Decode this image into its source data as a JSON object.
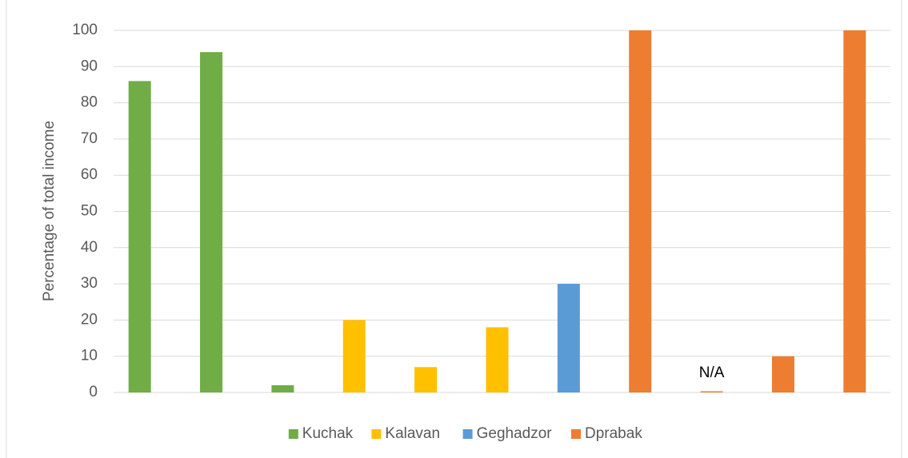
{
  "chart_data": {
    "type": "bar",
    "y_label": "Percentage of total income",
    "categories": [
      null,
      null,
      null,
      null,
      null,
      null,
      null,
      null,
      null,
      null,
      null
    ],
    "series": [
      {
        "name": "Kuchak",
        "color": "#70ad47",
        "values": [
          86,
          94,
          2,
          null,
          null,
          null,
          null,
          null,
          null,
          null,
          null
        ]
      },
      {
        "name": "Kalavan",
        "color": "#ffc000",
        "values": [
          null,
          null,
          null,
          20,
          7,
          18,
          null,
          null,
          null,
          null,
          null
        ]
      },
      {
        "name": "Geghadzor",
        "color": "#5b9bd5",
        "values": [
          null,
          null,
          null,
          null,
          null,
          null,
          30,
          null,
          null,
          null,
          null
        ]
      },
      {
        "name": "Dprabak",
        "color": "#ed7d31",
        "values": [
          null,
          null,
          null,
          null,
          null,
          null,
          null,
          100,
          null,
          10,
          100
        ],
        "value_labels": [
          null,
          null,
          null,
          null,
          null,
          null,
          null,
          null,
          "N/A",
          null,
          null
        ]
      }
    ],
    "ylim": [
      0,
      100
    ],
    "yticks": [
      0,
      10,
      20,
      30,
      40,
      50,
      60,
      70,
      80,
      90,
      100
    ],
    "grid": true,
    "legend": "bottom"
  }
}
